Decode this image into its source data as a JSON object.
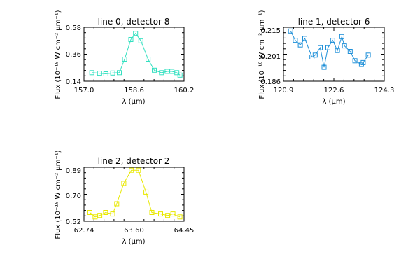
{
  "chart_data": [
    {
      "type": "line",
      "title": "line 0, detector 8",
      "xlabel": "λ (μm)",
      "ylabel": "Flux (10⁻¹⁸ W cm⁻² μm⁻¹)",
      "xlim": [
        157.0,
        160.2
      ],
      "ylim": [
        0.14,
        0.58
      ],
      "xticks": [
        "157.0",
        "158.6",
        "160.2"
      ],
      "yticks": [
        "0.14",
        "0.36",
        "0.58"
      ],
      "color": "#33e0c0",
      "series": [
        {
          "x": [
            157.25,
            157.5,
            157.7,
            157.92,
            158.13,
            158.3,
            158.5,
            158.65,
            158.82,
            159.05,
            159.25,
            159.48,
            159.66,
            159.81,
            159.97,
            160.07
          ],
          "y": [
            0.21,
            0.205,
            0.2,
            0.207,
            0.21,
            0.32,
            0.48,
            0.53,
            0.47,
            0.32,
            0.23,
            0.21,
            0.22,
            0.22,
            0.21,
            0.19
          ]
        }
      ]
    },
    {
      "type": "line",
      "title": "line 1, detector 6",
      "xlabel": "λ (μm)",
      "ylabel": "Flux (10⁻¹⁸ W cm⁻² μm⁻¹)",
      "xlim": [
        120.9,
        124.3
      ],
      "ylim": [
        0.186,
        0.215
      ],
      "xticks": [
        "120.9",
        "122.6",
        "124.3"
      ],
      "yticks": [
        "0.186",
        "0.201",
        "0.215"
      ],
      "color": "#1f90d8",
      "series": [
        {
          "x": [
            121.14,
            121.3,
            121.47,
            121.62,
            121.86,
            121.97,
            122.14,
            122.27,
            122.4,
            122.56,
            122.72,
            122.87,
            122.96,
            123.15,
            123.31,
            123.53,
            123.59,
            123.76
          ],
          "y": [
            0.213,
            0.208,
            0.2055,
            0.209,
            0.199,
            0.2,
            0.204,
            0.1935,
            0.204,
            0.208,
            0.2025,
            0.21,
            0.205,
            0.202,
            0.197,
            0.195,
            0.196,
            0.2
          ]
        }
      ]
    },
    {
      "type": "line",
      "title": "line 2, detector 2",
      "xlabel": "λ (μm)",
      "ylabel": "Flux (10⁻¹⁸ W cm⁻² μm⁻¹)",
      "xlim": [
        62.74,
        64.45
      ],
      "ylim": [
        0.52,
        0.89
      ],
      "xticks": [
        "62.74",
        "63.60",
        "64.45"
      ],
      "yticks": [
        "0.52",
        "0.70",
        "0.89"
      ],
      "color": "#e8e800",
      "series": [
        {
          "x": [
            62.84,
            62.93,
            63.01,
            63.11,
            63.23,
            63.3,
            63.42,
            63.55,
            63.67,
            63.8,
            63.9,
            64.05,
            64.17,
            64.26,
            64.38
          ],
          "y": [
            0.58,
            0.55,
            0.56,
            0.58,
            0.57,
            0.64,
            0.78,
            0.87,
            0.87,
            0.72,
            0.58,
            0.57,
            0.56,
            0.57,
            0.55
          ]
        }
      ]
    }
  ]
}
